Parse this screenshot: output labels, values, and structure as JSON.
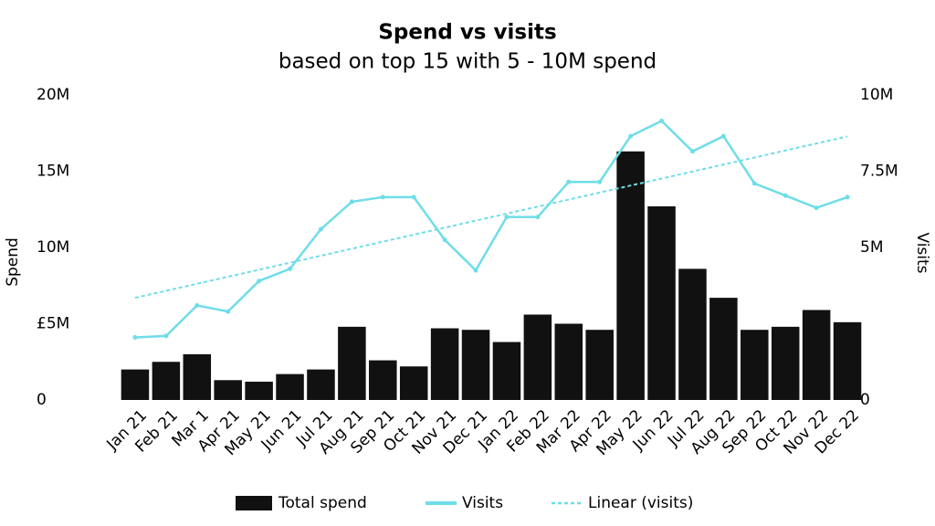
{
  "chart_data": {
    "type": "bar_line",
    "title": "Spend vs visits",
    "subtitle": "based on top 15 with 5 - 10M spend",
    "y_label": "Spend",
    "y2_label": "Visits",
    "categories": [
      "Jan 21",
      "Feb 21",
      "Mar 1",
      "Apr 21",
      "May 21",
      "Jun 21",
      "Jul 21",
      "Aug 21",
      "Sep 21",
      "Oct 21",
      "Nov 21",
      "Dec 21",
      "Jan 22",
      "Feb 22",
      "Mar 22",
      "Apr 22",
      "May 22",
      "Jun 22",
      "Jul 22",
      "Aug 22",
      "Sep 22",
      "Oct 22",
      "Nov 22",
      "Dec 22"
    ],
    "series": [
      {
        "name": "Total spend",
        "type": "bar",
        "color": "#111111",
        "values": [
          2.0,
          2.5,
          3.0,
          1.3,
          1.2,
          1.7,
          2.0,
          4.8,
          2.6,
          2.2,
          4.7,
          4.6,
          3.8,
          5.6,
          5.0,
          4.6,
          16.3,
          12.7,
          8.6,
          6.7,
          4.6,
          4.8,
          5.9,
          5.1
        ]
      },
      {
        "name": "Visits",
        "type": "line",
        "axis": "y2",
        "color": "#6fdde8",
        "values": [
          2.05,
          2.1,
          3.1,
          2.9,
          3.9,
          4.3,
          5.6,
          6.5,
          6.65,
          6.65,
          5.25,
          4.25,
          6.0,
          6.0,
          7.15,
          7.15,
          8.65,
          9.15,
          8.15,
          8.65,
          7.1,
          6.7,
          6.3,
          6.65
        ]
      },
      {
        "name": "Linear (visits)",
        "type": "dashed",
        "axis": "y2",
        "color": "#6fdde8",
        "values": [
          3.35,
          3.58,
          3.81,
          4.04,
          4.27,
          4.5,
          4.73,
          4.96,
          5.19,
          5.42,
          5.65,
          5.88,
          6.11,
          6.34,
          6.57,
          6.8,
          7.03,
          7.26,
          7.49,
          7.72,
          7.95,
          8.18,
          8.41,
          8.64
        ]
      }
    ],
    "ylim": [
      0,
      20
    ],
    "yticks": [
      0,
      {
        "value": 5,
        "label": "£5M"
      },
      {
        "value": 10,
        "label": "10M"
      },
      {
        "value": 15,
        "label": "15M"
      },
      {
        "value": 20,
        "label": "20M"
      }
    ],
    "y2lim": [
      0,
      10
    ],
    "y2ticks": [
      0,
      {
        "value": 5,
        "label": "5M"
      },
      {
        "value": 7.5,
        "label": "7.5M"
      },
      {
        "value": 10,
        "label": "10M"
      }
    ],
    "grid": false,
    "legend": "bottom"
  }
}
